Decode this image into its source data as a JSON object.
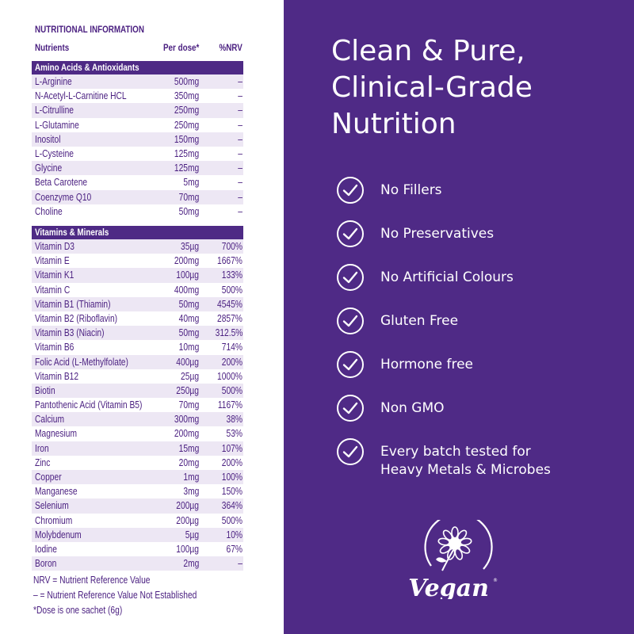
{
  "nutrition": {
    "title": "NUTRITIONAL INFORMATION",
    "headers": {
      "nutrient": "Nutrients",
      "dose": "Per dose*",
      "nrv": "%NRV"
    },
    "sections": [
      {
        "name": "Amino Acids & Antioxidants",
        "rows": [
          {
            "n": "L-Arginine",
            "d": "500mg",
            "p": "–"
          },
          {
            "n": "N-Acetyl-L-Carnitine HCL",
            "d": "350mg",
            "p": "–"
          },
          {
            "n": "L-Citrulline",
            "d": "250mg",
            "p": "–"
          },
          {
            "n": "L-Glutamine",
            "d": "250mg",
            "p": "–"
          },
          {
            "n": "Inositol",
            "d": "150mg",
            "p": "–"
          },
          {
            "n": "L-Cysteine",
            "d": "125mg",
            "p": "–"
          },
          {
            "n": "Glycine",
            "d": "125mg",
            "p": "–"
          },
          {
            "n": "Beta Carotene",
            "d": "5mg",
            "p": "–"
          },
          {
            "n": "Coenzyme Q10",
            "d": "70mg",
            "p": "–"
          },
          {
            "n": "Choline",
            "d": "50mg",
            "p": "–"
          }
        ]
      },
      {
        "name": "Vitamins & Minerals",
        "rows": [
          {
            "n": "Vitamin D3",
            "d": "35µg",
            "p": "700%"
          },
          {
            "n": "Vitamin E",
            "d": "200mg",
            "p": "1667%"
          },
          {
            "n": "Vitamin K1",
            "d": "100µg",
            "p": "133%"
          },
          {
            "n": "Vitamin C",
            "d": "400mg",
            "p": "500%"
          },
          {
            "n": "Vitamin B1 (Thiamin)",
            "d": "50mg",
            "p": "4545%"
          },
          {
            "n": "Vitamin B2 (Riboflavin)",
            "d": "40mg",
            "p": "2857%"
          },
          {
            "n": "Vitamin B3 (Niacin)",
            "d": "50mg",
            "p": "312.5%"
          },
          {
            "n": "Vitamin B6",
            "d": "10mg",
            "p": "714%"
          },
          {
            "n": "Folic Acid (L-Methylfolate)",
            "d": "400µg",
            "p": "200%"
          },
          {
            "n": "Vitamin B12",
            "d": "25µg",
            "p": "1000%"
          },
          {
            "n": "Biotin",
            "d": "250µg",
            "p": "500%"
          },
          {
            "n": "Pantothenic Acid (Vitamin B5)",
            "d": "70mg",
            "p": "1167%"
          },
          {
            "n": "Calcium",
            "d": "300mg",
            "p": "38%"
          },
          {
            "n": "Magnesium",
            "d": "200mg",
            "p": "53%"
          },
          {
            "n": "Iron",
            "d": "15mg",
            "p": "107%"
          },
          {
            "n": "Zinc",
            "d": "20mg",
            "p": "200%"
          },
          {
            "n": "Copper",
            "d": "1mg",
            "p": "100%"
          },
          {
            "n": "Manganese",
            "d": "3mg",
            "p": "150%"
          },
          {
            "n": "Selenium",
            "d": "200µg",
            "p": "364%"
          },
          {
            "n": "Chromium",
            "d": "200µg",
            "p": "500%"
          },
          {
            "n": "Molybdenum",
            "d": "5µg",
            "p": "10%"
          },
          {
            "n": "Iodine",
            "d": "100µg",
            "p": "67%"
          },
          {
            "n": "Boron",
            "d": "2mg",
            "p": "–"
          }
        ]
      }
    ],
    "footnotes": [
      "NRV = Nutrient Reference Value",
      "– = Nutrient Reference Value Not Established",
      "*Dose is one sachet (6g)"
    ]
  },
  "panel": {
    "headline": [
      "Clean & Pure,",
      "Clinical-Grade",
      "Nutrition"
    ],
    "features": [
      [
        "No Fillers"
      ],
      [
        "No Preservatives"
      ],
      [
        "No Artificial Colours"
      ],
      [
        "Gluten Free"
      ],
      [
        "Hormone free"
      ],
      [
        "Non GMO"
      ],
      [
        "Every batch tested for",
        "Heavy Metals & Microbes"
      ]
    ],
    "feature_icon": "check-circle-icon",
    "logo_text": "Vegan",
    "logo_icon": "vegan-sunflower-logo"
  },
  "colors": {
    "brand_purple": "#4f2a86",
    "row_tint": "#ede7f4",
    "text_purple": "#4a1f80"
  }
}
